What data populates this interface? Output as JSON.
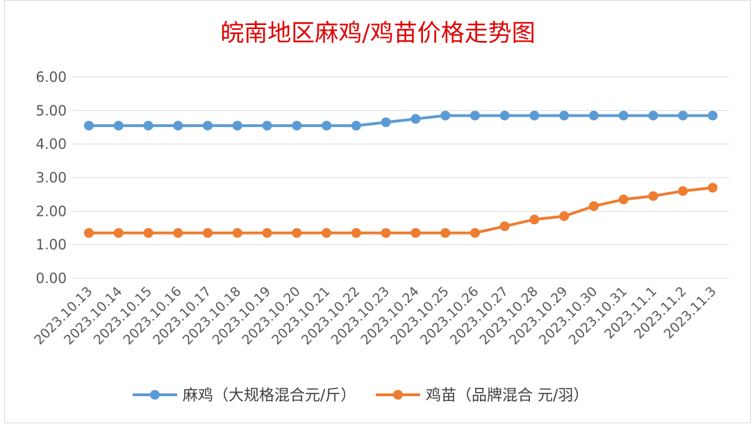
{
  "chart_data": {
    "type": "line",
    "title": "皖南地区麻鸡/鸡苗价格走势图",
    "xlabel": "",
    "ylabel": "",
    "ylim": [
      0,
      6
    ],
    "yticks": [
      "0.00",
      "1.00",
      "2.00",
      "3.00",
      "4.00",
      "5.00",
      "6.00"
    ],
    "grid": true,
    "legend_position": "bottom",
    "categories": [
      "2023.10.13",
      "2023.10.14",
      "2023.10.15",
      "2023.10.16",
      "2023.10.17",
      "2023.10.18",
      "2023.10.19",
      "2023.10.20",
      "2023.10.21",
      "2023.10.22",
      "2023.10.23",
      "2023.10.24",
      "2023.10.25",
      "2023.10.26",
      "2023.10.27",
      "2023.10.28",
      "2023.10.29",
      "2023.10.30",
      "2023.10.31",
      "2023.11.1",
      "2023.11.2",
      "2023.11.3"
    ],
    "series": [
      {
        "name": "麻鸡（大规格混合元/斤）",
        "color": "#5b9bd5",
        "values": [
          4.55,
          4.55,
          4.55,
          4.55,
          4.55,
          4.55,
          4.55,
          4.55,
          4.55,
          4.55,
          4.65,
          4.75,
          4.85,
          4.85,
          4.85,
          4.85,
          4.85,
          4.85,
          4.85,
          4.85,
          4.85,
          4.85
        ]
      },
      {
        "name": "鸡苗（品牌混合 元/羽）",
        "color": "#ed7d31",
        "values": [
          1.35,
          1.35,
          1.35,
          1.35,
          1.35,
          1.35,
          1.35,
          1.35,
          1.35,
          1.35,
          1.35,
          1.35,
          1.35,
          1.35,
          1.55,
          1.75,
          1.85,
          2.15,
          2.35,
          2.45,
          2.6,
          2.7
        ]
      }
    ]
  }
}
